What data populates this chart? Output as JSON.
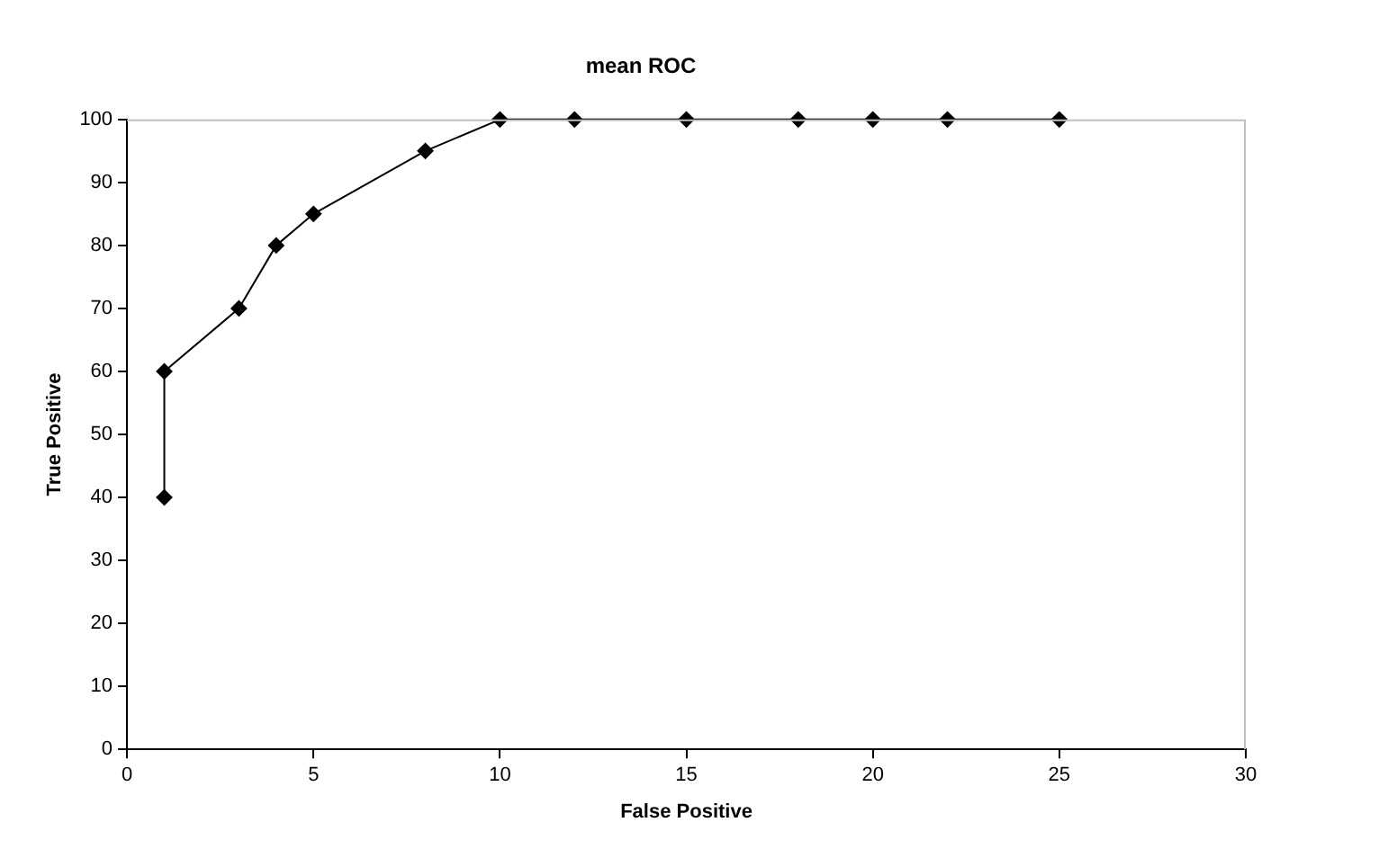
{
  "chart_data": {
    "type": "line",
    "title": "mean ROC",
    "xlabel": "False Positive",
    "ylabel": "True Positive",
    "x": [
      1,
      1,
      3,
      4,
      5,
      8,
      10,
      12,
      15,
      18,
      20,
      22,
      25
    ],
    "series": [
      {
        "color": "#000000",
        "values": [
          40,
          60,
          70,
          80,
          85,
          95,
          100,
          100,
          100,
          100,
          100,
          100,
          100
        ]
      }
    ],
    "xlim": [
      0,
      30
    ],
    "xticks": [
      0,
      5,
      10,
      15,
      20,
      25,
      30
    ],
    "ylim": [
      0,
      100
    ],
    "yticks": [
      0,
      10,
      20,
      30,
      40,
      50,
      60,
      70,
      80,
      90,
      100
    ],
    "marker": "diamond",
    "line_style": "solid",
    "grid": false,
    "legend": false
  }
}
